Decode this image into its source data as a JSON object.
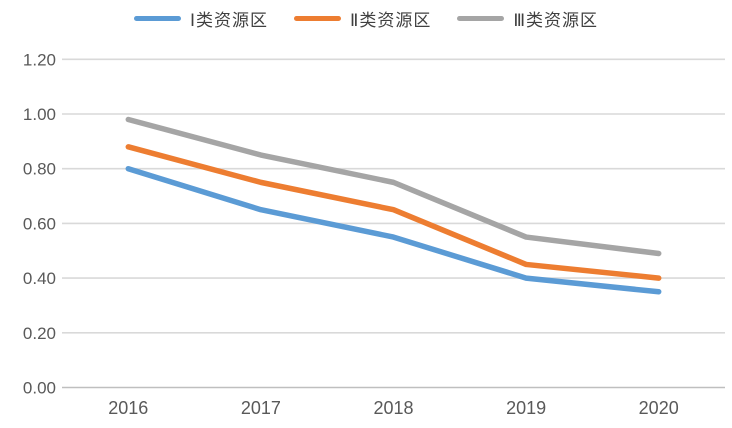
{
  "chart_data": {
    "type": "line",
    "title": "",
    "xlabel": "",
    "ylabel": "",
    "categories": [
      "2016",
      "2017",
      "2018",
      "2019",
      "2020"
    ],
    "series": [
      {
        "name": "Ⅰ类资源区",
        "color": "#5B9BD5",
        "values": [
          0.8,
          0.65,
          0.55,
          0.4,
          0.35
        ]
      },
      {
        "name": "Ⅱ类资源区",
        "color": "#ED7D31",
        "values": [
          0.88,
          0.75,
          0.65,
          0.45,
          0.4
        ]
      },
      {
        "name": "Ⅲ类资源区",
        "color": "#A5A5A5",
        "values": [
          0.98,
          0.85,
          0.75,
          0.55,
          0.49
        ]
      }
    ],
    "ylim": [
      0.0,
      1.2
    ],
    "ytick_step": 0.2,
    "ytick_labels": [
      "0.00",
      "0.20",
      "0.40",
      "0.60",
      "0.80",
      "1.00",
      "1.20"
    ],
    "grid": "horizontal",
    "legend_position": "top"
  },
  "colors": {
    "background": "#FFFFFF",
    "gridline": "#D9D9D9",
    "axis_line": "#BFBFBF",
    "tick_label": "#595959",
    "legend_text": "#404040"
  }
}
